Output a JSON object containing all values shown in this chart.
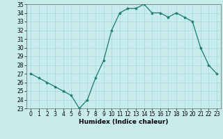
{
  "x": [
    0,
    1,
    2,
    3,
    4,
    5,
    6,
    7,
    8,
    9,
    10,
    11,
    12,
    13,
    14,
    15,
    16,
    17,
    18,
    19,
    20,
    21,
    22,
    23
  ],
  "y": [
    27.0,
    26.5,
    26.0,
    25.5,
    25.0,
    24.5,
    23.0,
    24.0,
    26.5,
    28.5,
    32.0,
    34.0,
    34.5,
    34.5,
    35.0,
    34.0,
    34.0,
    33.5,
    34.0,
    33.5,
    33.0,
    30.0,
    28.0,
    27.0
  ],
  "line_color": "#1a7a6e",
  "marker": "*",
  "bg_color": "#c8ecec",
  "grid_color": "#a8d8d8",
  "xlabel": "Humidex (Indice chaleur)",
  "ylim": [
    23,
    35
  ],
  "xlim": [
    -0.5,
    23.5
  ],
  "yticks": [
    23,
    24,
    25,
    26,
    27,
    28,
    29,
    30,
    31,
    32,
    33,
    34,
    35
  ],
  "xticks": [
    0,
    1,
    2,
    3,
    4,
    5,
    6,
    7,
    8,
    9,
    10,
    11,
    12,
    13,
    14,
    15,
    16,
    17,
    18,
    19,
    20,
    21,
    22,
    23
  ],
  "tick_fontsize": 5.5,
  "xlabel_fontsize": 6.5,
  "marker_size": 3.0,
  "line_width": 0.9
}
